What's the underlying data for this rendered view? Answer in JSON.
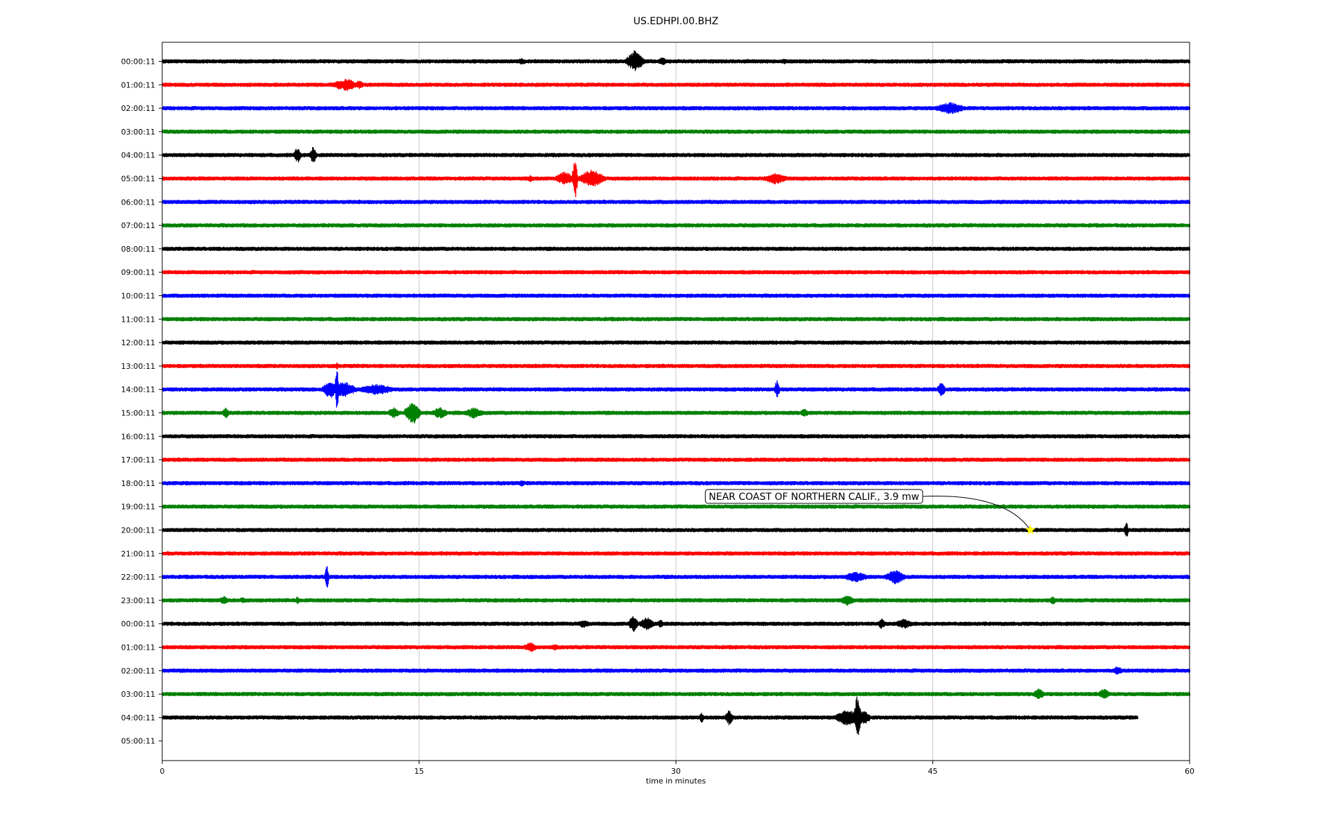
{
  "chart_data": {
    "type": "line",
    "chart_kind": "helicorder",
    "title": "US.EDHPI.00.BHZ",
    "xlabel": "time in minutes",
    "ylabel": "",
    "xlim": [
      0,
      60
    ],
    "x_ticks": [
      0,
      15,
      30,
      45,
      60
    ],
    "grid": "vertical",
    "line_colors": [
      "#000000",
      "#ff0000",
      "#0000ff",
      "#008000"
    ],
    "row_labels": [
      "00:00:11",
      "01:00:11",
      "02:00:11",
      "03:00:11",
      "04:00:11",
      "05:00:11",
      "06:00:11",
      "07:00:11",
      "08:00:11",
      "09:00:11",
      "10:00:11",
      "11:00:11",
      "12:00:11",
      "13:00:11",
      "14:00:11",
      "15:00:11",
      "16:00:11",
      "17:00:11",
      "18:00:11",
      "19:00:11",
      "20:00:11",
      "21:00:11",
      "22:00:11",
      "23:00:11",
      "00:00:11",
      "01:00:11",
      "02:00:11",
      "03:00:11",
      "04:00:11",
      "05:00:11"
    ],
    "traces": [
      {
        "row": 0,
        "end_minute": 60,
        "events": [
          {
            "t": 21,
            "amp": 5,
            "dur": 0.4
          },
          {
            "t": 27.6,
            "amp": 16,
            "dur": 0.7
          },
          {
            "t": 29.2,
            "amp": 6,
            "dur": 0.4
          },
          {
            "t": 36.3,
            "amp": 4,
            "dur": 0.3
          }
        ]
      },
      {
        "row": 1,
        "end_minute": 60,
        "events": [
          {
            "t": 10.3,
            "amp": 7,
            "dur": 0.5
          },
          {
            "t": 10.8,
            "amp": 10,
            "dur": 0.7
          },
          {
            "t": 11.5,
            "amp": 6,
            "dur": 0.5
          },
          {
            "t": 38.4,
            "amp": 3,
            "dur": 0.3
          }
        ]
      },
      {
        "row": 2,
        "end_minute": 60,
        "events": [
          {
            "t": 46.0,
            "amp": 9,
            "dur": 1.2
          }
        ]
      },
      {
        "row": 3,
        "end_minute": 60,
        "events": []
      },
      {
        "row": 4,
        "end_minute": 60,
        "events": [
          {
            "t": 7.9,
            "amp": 12,
            "dur": 0.3
          },
          {
            "t": 8.8,
            "amp": 12,
            "dur": 0.3
          }
        ]
      },
      {
        "row": 5,
        "end_minute": 60,
        "events": [
          {
            "t": 21.5,
            "amp": 5,
            "dur": 0.4
          },
          {
            "t": 23.5,
            "amp": 10,
            "dur": 0.8
          },
          {
            "t": 24.1,
            "amp": 32,
            "dur": 0.2
          },
          {
            "t": 25.1,
            "amp": 14,
            "dur": 1.0
          },
          {
            "t": 35.8,
            "amp": 8,
            "dur": 1.0
          }
        ]
      },
      {
        "row": 6,
        "end_minute": 60,
        "events": []
      },
      {
        "row": 7,
        "end_minute": 60,
        "events": []
      },
      {
        "row": 8,
        "end_minute": 60,
        "events": []
      },
      {
        "row": 9,
        "end_minute": 60,
        "events": []
      },
      {
        "row": 10,
        "end_minute": 60,
        "events": []
      },
      {
        "row": 11,
        "end_minute": 60,
        "events": []
      },
      {
        "row": 12,
        "end_minute": 60,
        "events": []
      },
      {
        "row": 13,
        "end_minute": 60,
        "events": [
          {
            "t": 10.2,
            "amp": 5,
            "dur": 0.2
          }
        ]
      },
      {
        "row": 14,
        "end_minute": 60,
        "events": [
          {
            "t": 9.8,
            "amp": 14,
            "dur": 0.6
          },
          {
            "t": 10.2,
            "amp": 40,
            "dur": 0.15
          },
          {
            "t": 10.6,
            "amp": 12,
            "dur": 1.0
          },
          {
            "t": 12.5,
            "amp": 8,
            "dur": 1.5
          },
          {
            "t": 35.9,
            "amp": 14,
            "dur": 0.2
          },
          {
            "t": 45.5,
            "amp": 12,
            "dur": 0.3
          }
        ]
      },
      {
        "row": 15,
        "end_minute": 60,
        "events": [
          {
            "t": 3.7,
            "amp": 8,
            "dur": 0.3
          },
          {
            "t": 13.5,
            "amp": 8,
            "dur": 0.5
          },
          {
            "t": 14.6,
            "amp": 18,
            "dur": 0.6
          },
          {
            "t": 16.2,
            "amp": 9,
            "dur": 0.6
          },
          {
            "t": 18.2,
            "amp": 8,
            "dur": 0.8
          },
          {
            "t": 37.5,
            "amp": 6,
            "dur": 0.4
          }
        ]
      },
      {
        "row": 16,
        "end_minute": 60,
        "events": []
      },
      {
        "row": 17,
        "end_minute": 60,
        "events": []
      },
      {
        "row": 18,
        "end_minute": 60,
        "events": [
          {
            "t": 21,
            "amp": 5,
            "dur": 0.3
          }
        ]
      },
      {
        "row": 19,
        "end_minute": 60,
        "events": []
      },
      {
        "row": 20,
        "end_minute": 60,
        "events": [
          {
            "t": 56.3,
            "amp": 14,
            "dur": 0.15
          }
        ]
      },
      {
        "row": 21,
        "end_minute": 60,
        "events": [
          {
            "t": 48,
            "amp": 3,
            "dur": 0.3
          }
        ]
      },
      {
        "row": 22,
        "end_minute": 60,
        "events": [
          {
            "t": 9.6,
            "amp": 22,
            "dur": 0.15
          },
          {
            "t": 40.5,
            "amp": 8,
            "dur": 1.0
          },
          {
            "t": 42.8,
            "amp": 11,
            "dur": 0.8
          }
        ]
      },
      {
        "row": 23,
        "end_minute": 60,
        "events": [
          {
            "t": 3.6,
            "amp": 7,
            "dur": 0.4
          },
          {
            "t": 4.7,
            "amp": 5,
            "dur": 0.3
          },
          {
            "t": 7.9,
            "amp": 6,
            "dur": 0.2
          },
          {
            "t": 40.0,
            "amp": 8,
            "dur": 0.6
          },
          {
            "t": 52.0,
            "amp": 6,
            "dur": 0.3
          }
        ]
      },
      {
        "row": 24,
        "end_minute": 60,
        "events": [
          {
            "t": 24.6,
            "amp": 6,
            "dur": 0.6
          },
          {
            "t": 27.5,
            "amp": 12,
            "dur": 0.4
          },
          {
            "t": 28.3,
            "amp": 10,
            "dur": 0.6
          },
          {
            "t": 29.1,
            "amp": 6,
            "dur": 0.3
          },
          {
            "t": 42.0,
            "amp": 8,
            "dur": 0.3
          },
          {
            "t": 43.3,
            "amp": 7,
            "dur": 0.8
          }
        ]
      },
      {
        "row": 25,
        "end_minute": 60,
        "events": [
          {
            "t": 21.5,
            "amp": 7,
            "dur": 0.6
          },
          {
            "t": 22.9,
            "amp": 5,
            "dur": 0.4
          }
        ]
      },
      {
        "row": 26,
        "end_minute": 60,
        "events": [
          {
            "t": 55.8,
            "amp": 6,
            "dur": 0.6
          }
        ]
      },
      {
        "row": 27,
        "end_minute": 60,
        "events": [
          {
            "t": 51.2,
            "amp": 8,
            "dur": 0.5
          },
          {
            "t": 55.0,
            "amp": 8,
            "dur": 0.5
          }
        ]
      },
      {
        "row": 28,
        "end_minute": 57,
        "events": [
          {
            "t": 31.5,
            "amp": 8,
            "dur": 0.2
          },
          {
            "t": 33.1,
            "amp": 12,
            "dur": 0.3
          },
          {
            "t": 40.0,
            "amp": 12,
            "dur": 1.0
          },
          {
            "t": 40.6,
            "amp": 34,
            "dur": 0.3
          },
          {
            "t": 41.0,
            "amp": 10,
            "dur": 0.5
          }
        ]
      }
    ],
    "annotations": [
      {
        "text": "NEAR COAST OF NORTHERN CALIF., 3.9 mw",
        "row": 20,
        "minute": 50.7,
        "marker": "star",
        "marker_color": "#ffff00"
      }
    ]
  }
}
